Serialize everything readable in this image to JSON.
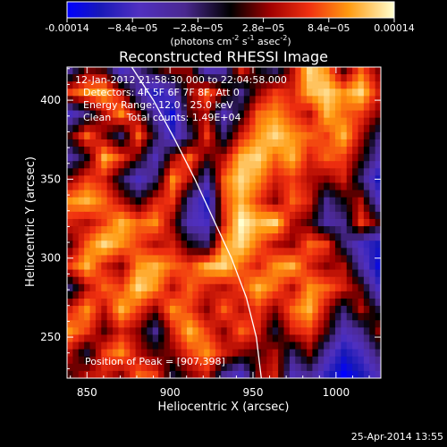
{
  "chart_data": {
    "type": "heatmap",
    "title": "Reconstructed RHESSI Image",
    "xlabel": "Heliocentric X (arcsec)",
    "ylabel": "Heliocentric Y (arcsec)",
    "xlim": [
      838,
      1027
    ],
    "ylim": [
      224,
      421
    ],
    "xticks": [
      850,
      900,
      950,
      1000
    ],
    "yticks": [
      250,
      300,
      350,
      400
    ],
    "colorbar": {
      "label_parts": [
        "(photons cm",
        "-2",
        " s",
        "-1",
        " asec",
        "-2",
        ")"
      ],
      "range": [
        -0.00014,
        0.00014
      ],
      "ticks": [
        "-0.00014",
        "−8.4e−05",
        "−2.8e−05",
        "2.8e−05",
        "8.4e−05",
        "0.00014"
      ]
    },
    "annotations": [
      "12-Jan-2012 21:58:30.000 to 22:04:58.000",
      "Detectors: 4F 5F 6F 7F 8F, Att 0",
      "Energy Range: 12.0 - 25.0 keV",
      "Clean     Total counts: 1.49E+04"
    ],
    "peak_text": "Position of Peak = [907,398]",
    "limb_curve": [
      [
        877,
        421
      ],
      [
        890,
        400
      ],
      [
        903,
        375
      ],
      [
        915,
        350
      ],
      [
        926,
        325
      ],
      [
        937,
        300
      ],
      [
        946,
        275
      ],
      [
        952,
        250
      ],
      [
        955,
        224
      ]
    ],
    "intensity_grid": [
      [
        -0.3,
        0.2,
        0.1,
        -0.6,
        -0.3,
        0.0,
        0.2,
        0.2,
        -0.5,
        -0.4,
        0.4,
        0.0,
        -0.2,
        0.3,
        0.9,
        0.7,
        0.1,
        0.6,
        0.2
      ],
      [
        0.5,
        0.7,
        0.8,
        0.3,
        -0.4,
        -0.8,
        -0.5,
        0.2,
        0.6,
        0.2,
        -0.3,
        0.2,
        0.5,
        0.4,
        0.8,
        0.9,
        0.7,
        0.9,
        0.4
      ],
      [
        -0.6,
        -0.2,
        0.3,
        0.7,
        0.2,
        -0.4,
        -0.9,
        0.1,
        0.3,
        -0.5,
        0.0,
        0.6,
        0.7,
        0.5,
        0.3,
        0.8,
        0.6,
        0.5,
        0.2
      ],
      [
        0.1,
        0.6,
        0.2,
        -0.2,
        0.6,
        -0.1,
        -0.7,
        -0.2,
        0.5,
        -0.2,
        0.4,
        0.7,
        0.9,
        0.7,
        0.6,
        0.5,
        0.8,
        0.3,
        -0.2
      ],
      [
        -0.4,
        0.0,
        0.8,
        0.5,
        0.1,
        -0.5,
        0.2,
        0.6,
        0.1,
        0.3,
        0.8,
        0.9,
        0.6,
        0.8,
        0.4,
        0.6,
        0.5,
        0.1,
        -0.4
      ],
      [
        0.2,
        0.5,
        0.4,
        -0.1,
        -0.6,
        -0.2,
        0.7,
        0.3,
        -0.4,
        0.6,
        0.9,
        0.7,
        0.4,
        0.5,
        0.3,
        0.2,
        0.4,
        -0.2,
        -0.8
      ],
      [
        0.7,
        0.8,
        0.6,
        0.3,
        0.0,
        0.4,
        0.5,
        -0.3,
        -0.8,
        0.5,
        0.8,
        0.5,
        0.2,
        0.6,
        0.4,
        -0.3,
        0.0,
        0.3,
        -0.5
      ],
      [
        0.4,
        0.3,
        0.5,
        0.8,
        0.6,
        0.7,
        0.2,
        -0.5,
        -0.6,
        0.4,
        1.0,
        0.8,
        0.9,
        0.3,
        0.1,
        -0.4,
        -0.3,
        0.5,
        0.1
      ],
      [
        0.1,
        0.6,
        0.9,
        0.7,
        0.5,
        0.3,
        0.4,
        0.0,
        -0.2,
        0.7,
        0.9,
        0.6,
        0.3,
        0.2,
        0.6,
        0.5,
        -0.2,
        -0.6,
        -0.8
      ],
      [
        0.5,
        0.8,
        0.4,
        0.2,
        0.7,
        0.8,
        0.6,
        0.5,
        0.8,
        0.9,
        0.6,
        0.4,
        0.7,
        0.8,
        0.4,
        0.2,
        0.3,
        -0.4,
        -0.9
      ],
      [
        -0.2,
        0.3,
        0.6,
        0.5,
        0.9,
        0.7,
        0.3,
        0.6,
        0.4,
        0.3,
        0.5,
        0.8,
        0.6,
        0.3,
        0.7,
        0.6,
        0.4,
        0.1,
        -0.6
      ],
      [
        0.4,
        0.7,
        0.3,
        0.8,
        0.5,
        0.2,
        0.7,
        0.5,
        0.2,
        0.6,
        0.3,
        0.5,
        0.2,
        0.6,
        0.8,
        0.3,
        -0.2,
        0.3,
        -0.1
      ],
      [
        0.7,
        0.5,
        0.1,
        0.4,
        0.2,
        -0.3,
        0.4,
        0.8,
        0.5,
        0.2,
        0.6,
        0.4,
        -0.1,
        0.4,
        0.5,
        0.1,
        -0.5,
        -0.3,
        0.2
      ],
      [
        0.3,
        -0.1,
        0.5,
        0.7,
        0.3,
        0.1,
        0.2,
        0.5,
        0.7,
        0.4,
        0.2,
        0.1,
        0.3,
        -0.2,
        0.2,
        -0.4,
        -0.8,
        -0.6,
        -0.2
      ],
      [
        0.1,
        0.3,
        0.4,
        0.2,
        0.6,
        0.5,
        -0.1,
        0.2,
        0.4,
        -0.3,
        -0.6,
        0.2,
        0.4,
        -0.5,
        -0.3,
        -0.7,
        -1.0,
        -0.8,
        -0.5
      ]
    ]
  }
}
